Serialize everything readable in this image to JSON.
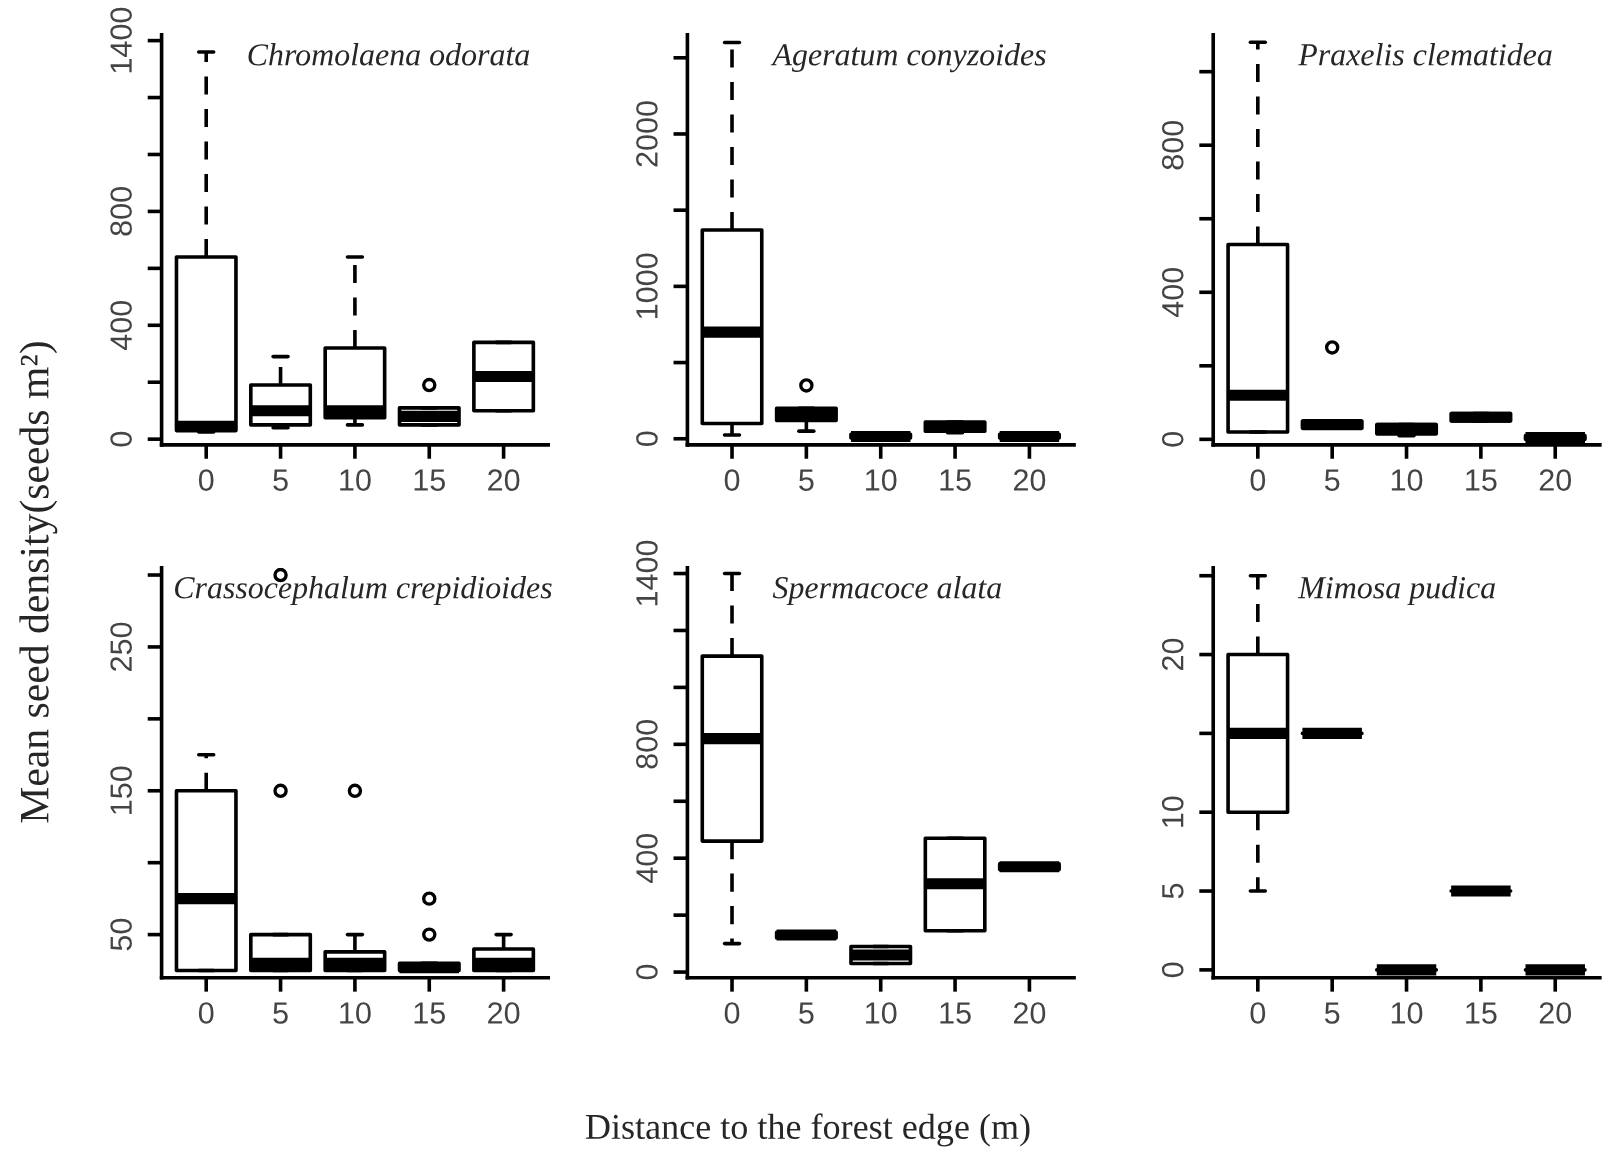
{
  "chart_data": [
    {
      "type": "box",
      "title": "Chromolaena odorata",
      "ylabel": "Mean seed density(seeds m²)",
      "categories": [
        "0",
        "5",
        "10",
        "15",
        "20"
      ],
      "boxes": [
        {
          "low": 25,
          "q1": 30,
          "median": 45,
          "q3": 640,
          "high": 1360
        },
        {
          "low": 40,
          "q1": 50,
          "median": 100,
          "q3": 190,
          "high": 290
        },
        {
          "low": 50,
          "q1": 75,
          "median": 100,
          "q3": 320,
          "high": 640
        },
        {
          "low": 50,
          "q1": 50,
          "median": 80,
          "q3": 110,
          "high": 110,
          "outliers": [
            190
          ]
        },
        {
          "low": 100,
          "q1": 100,
          "median": 220,
          "q3": 340,
          "high": 340
        }
      ],
      "ylim": [
        -20,
        1420
      ],
      "yticks": [
        0,
        {
          "value": 200,
          "label": null
        },
        400,
        {
          "value": 600,
          "label": null
        },
        800,
        {
          "value": 1000,
          "label": null
        },
        {
          "value": 1200,
          "label": null
        },
        1400
      ]
    },
    {
      "type": "box",
      "title": "Ageratum conyzoides",
      "categories": [
        "0",
        "5",
        "10",
        "15",
        "20"
      ],
      "boxes": [
        {
          "low": 25,
          "q1": 100,
          "median": 700,
          "q3": 1370,
          "high": 2600
        },
        {
          "low": 50,
          "q1": 120,
          "median": 160,
          "q3": 200,
          "high": 200,
          "outliers": [
            350
          ]
        },
        {
          "low": 0,
          "q1": 5,
          "median": 15,
          "q3": 30,
          "high": 30
        },
        {
          "low": 40,
          "q1": 50,
          "median": 80,
          "q3": 110,
          "high": 110
        },
        {
          "low": 0,
          "q1": 5,
          "median": 15,
          "q3": 30,
          "high": 30
        }
      ],
      "ylim": [
        -40,
        2650
      ],
      "yticks": [
        0,
        {
          "value": 500,
          "label": null
        },
        1000,
        {
          "value": 1500,
          "label": null
        },
        2000,
        {
          "value": 2500,
          "label": null
        }
      ]
    },
    {
      "type": "box",
      "title": "Praxelis clematidea",
      "categories": [
        "0",
        "5",
        "10",
        "15",
        "20"
      ],
      "boxes": [
        {
          "low": 20,
          "q1": 20,
          "median": 120,
          "q3": 530,
          "high": 1080
        },
        {
          "low": 30,
          "q1": 30,
          "median": 40,
          "q3": 50,
          "high": 50,
          "outliers": [
            250
          ]
        },
        {
          "low": 10,
          "q1": 15,
          "median": 30,
          "q3": 40,
          "high": 40
        },
        {
          "low": 50,
          "q1": 50,
          "median": 60,
          "q3": 70,
          "high": 70
        },
        {
          "low": 0,
          "q1": 0,
          "median": 5,
          "q3": 10,
          "high": 10
        }
      ],
      "ylim": [
        -15,
        1100
      ],
      "yticks": [
        0,
        {
          "value": 200,
          "label": null
        },
        400,
        {
          "value": 600,
          "label": null
        },
        800,
        {
          "value": 1000,
          "label": null
        }
      ]
    },
    {
      "type": "box",
      "title": "Crassocephalum crepidioides",
      "categories": [
        "0",
        "5",
        "10",
        "15",
        "20"
      ],
      "boxes": [
        {
          "low": 25,
          "q1": 25,
          "median": 75,
          "q3": 150,
          "high": 175
        },
        {
          "low": 25,
          "q1": 25,
          "median": 30,
          "q3": 50,
          "high": 50,
          "outliers": [
            150,
            300
          ]
        },
        {
          "low": 25,
          "q1": 25,
          "median": 30,
          "q3": 38,
          "high": 50,
          "outliers": [
            150
          ]
        },
        {
          "low": 25,
          "q1": 25,
          "median": 27,
          "q3": 30,
          "high": 30,
          "outliers": [
            50,
            75
          ]
        },
        {
          "low": 25,
          "q1": 25,
          "median": 30,
          "q3": 40,
          "high": 50
        }
      ],
      "ylim": [
        20,
        305
      ],
      "yticks": [
        50,
        {
          "value": 100,
          "label": null
        },
        150,
        {
          "value": 200,
          "label": null
        },
        250,
        {
          "value": 300,
          "label": null
        }
      ]
    },
    {
      "type": "box",
      "title": "Spermacoce alata",
      "xlabel": "Distance to the forest edge (m)",
      "categories": [
        "0",
        "5",
        "10",
        "15",
        "20"
      ],
      "boxes": [
        {
          "low": 100,
          "q1": 460,
          "median": 820,
          "q3": 1110,
          "high": 1400
        },
        {
          "low": 120,
          "q1": 120,
          "median": 130,
          "q3": 140,
          "high": 140
        },
        {
          "low": 30,
          "q1": 30,
          "median": 60,
          "q3": 90,
          "high": 90
        },
        {
          "low": 145,
          "q1": 145,
          "median": 310,
          "q3": 470,
          "high": 470
        },
        {
          "low": 360,
          "q1": 360,
          "median": 370,
          "q3": 380,
          "high": 380
        }
      ],
      "ylim": [
        -20,
        1420
      ],
      "yticks": [
        0,
        {
          "value": 200,
          "label": null
        },
        400,
        {
          "value": 600,
          "label": null
        },
        800,
        {
          "value": 1000,
          "label": null
        },
        {
          "value": 1200,
          "label": null
        },
        1400
      ]
    },
    {
      "type": "box",
      "title": "Mimosa pudica",
      "categories": [
        "0",
        "5",
        "10",
        "15",
        "20"
      ],
      "boxes": [
        {
          "low": 5,
          "q1": 10,
          "median": 15,
          "q3": 20,
          "high": 25
        },
        {
          "low": 15,
          "q1": 15,
          "median": 15,
          "q3": 15,
          "high": 15
        },
        {
          "low": 0,
          "q1": 0,
          "median": 0,
          "q3": 0,
          "high": 0
        },
        {
          "low": 5,
          "q1": 5,
          "median": 5,
          "q3": 5,
          "high": 5
        },
        {
          "low": 0,
          "q1": 0,
          "median": 0,
          "q3": 0,
          "high": 0
        }
      ],
      "ylim": [
        -0.5,
        25.5
      ],
      "yticks": [
        0,
        5,
        10,
        {
          "value": 15,
          "label": null
        },
        20,
        {
          "value": 25,
          "label": null
        }
      ]
    }
  ]
}
